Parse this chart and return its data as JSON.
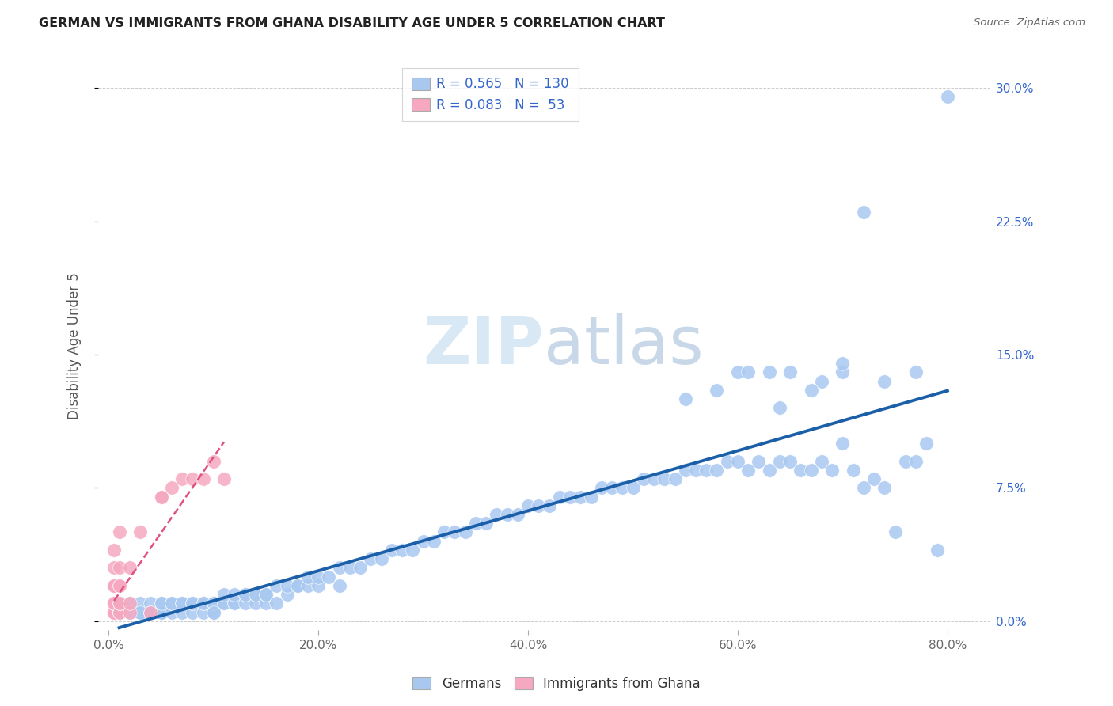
{
  "title": "GERMAN VS IMMIGRANTS FROM GHANA DISABILITY AGE UNDER 5 CORRELATION CHART",
  "source": "Source: ZipAtlas.com",
  "ylabel": "Disability Age Under 5",
  "xlabel_ticks": [
    "0.0%",
    "20.0%",
    "40.0%",
    "60.0%",
    "80.0%"
  ],
  "xlabel_vals": [
    0.0,
    0.2,
    0.4,
    0.6,
    0.8
  ],
  "ytick_labels": [
    "0.0%",
    "7.5%",
    "15.0%",
    "22.5%",
    "30.0%"
  ],
  "ytick_vals": [
    0.0,
    0.075,
    0.15,
    0.225,
    0.3
  ],
  "xlim": [
    -0.01,
    0.84
  ],
  "ylim": [
    -0.005,
    0.315
  ],
  "blue_R": 0.565,
  "blue_N": 130,
  "pink_R": 0.083,
  "pink_N": 53,
  "blue_color": "#a8c8f0",
  "pink_color": "#f5a8c0",
  "blue_line_color": "#1a5fa8",
  "pink_line_color": "#e05080",
  "legend_color": "#3366cc",
  "watermark_color": "#d8e8f5",
  "blue_x": [
    0.01,
    0.01,
    0.02,
    0.02,
    0.03,
    0.03,
    0.03,
    0.04,
    0.04,
    0.04,
    0.05,
    0.05,
    0.05,
    0.05,
    0.06,
    0.06,
    0.06,
    0.07,
    0.07,
    0.07,
    0.08,
    0.08,
    0.08,
    0.09,
    0.09,
    0.09,
    0.1,
    0.1,
    0.1,
    0.1,
    0.11,
    0.11,
    0.11,
    0.12,
    0.12,
    0.12,
    0.13,
    0.13,
    0.13,
    0.14,
    0.14,
    0.14,
    0.15,
    0.15,
    0.15,
    0.16,
    0.16,
    0.17,
    0.17,
    0.18,
    0.18,
    0.19,
    0.19,
    0.2,
    0.2,
    0.21,
    0.22,
    0.22,
    0.23,
    0.24,
    0.25,
    0.26,
    0.27,
    0.28,
    0.29,
    0.3,
    0.31,
    0.32,
    0.33,
    0.34,
    0.35,
    0.36,
    0.37,
    0.38,
    0.39,
    0.4,
    0.41,
    0.42,
    0.43,
    0.44,
    0.45,
    0.46,
    0.47,
    0.48,
    0.49,
    0.5,
    0.51,
    0.52,
    0.53,
    0.54,
    0.55,
    0.56,
    0.57,
    0.58,
    0.59,
    0.6,
    0.61,
    0.62,
    0.63,
    0.64,
    0.65,
    0.66,
    0.67,
    0.68,
    0.69,
    0.7,
    0.71,
    0.72,
    0.73,
    0.74,
    0.75,
    0.76,
    0.77,
    0.78,
    0.79,
    0.8,
    0.6,
    0.63,
    0.65,
    0.68,
    0.7,
    0.72,
    0.55,
    0.58,
    0.61,
    0.64,
    0.67,
    0.7,
    0.74,
    0.77
  ],
  "blue_y": [
    0.005,
    0.01,
    0.005,
    0.01,
    0.005,
    0.01,
    0.005,
    0.005,
    0.01,
    0.005,
    0.005,
    0.01,
    0.005,
    0.01,
    0.005,
    0.01,
    0.01,
    0.005,
    0.01,
    0.01,
    0.005,
    0.01,
    0.01,
    0.005,
    0.01,
    0.01,
    0.005,
    0.01,
    0.01,
    0.005,
    0.01,
    0.01,
    0.015,
    0.01,
    0.01,
    0.015,
    0.01,
    0.015,
    0.015,
    0.01,
    0.015,
    0.015,
    0.01,
    0.015,
    0.015,
    0.01,
    0.02,
    0.015,
    0.02,
    0.02,
    0.02,
    0.02,
    0.025,
    0.02,
    0.025,
    0.025,
    0.02,
    0.03,
    0.03,
    0.03,
    0.035,
    0.035,
    0.04,
    0.04,
    0.04,
    0.045,
    0.045,
    0.05,
    0.05,
    0.05,
    0.055,
    0.055,
    0.06,
    0.06,
    0.06,
    0.065,
    0.065,
    0.065,
    0.07,
    0.07,
    0.07,
    0.07,
    0.075,
    0.075,
    0.075,
    0.075,
    0.08,
    0.08,
    0.08,
    0.08,
    0.085,
    0.085,
    0.085,
    0.085,
    0.09,
    0.09,
    0.085,
    0.09,
    0.085,
    0.09,
    0.09,
    0.085,
    0.085,
    0.09,
    0.085,
    0.1,
    0.085,
    0.075,
    0.08,
    0.075,
    0.05,
    0.09,
    0.09,
    0.1,
    0.04,
    0.295,
    0.14,
    0.14,
    0.14,
    0.135,
    0.14,
    0.23,
    0.125,
    0.13,
    0.14,
    0.12,
    0.13,
    0.145,
    0.135,
    0.14
  ],
  "pink_x": [
    0.005,
    0.005,
    0.005,
    0.005,
    0.005,
    0.005,
    0.005,
    0.005,
    0.005,
    0.005,
    0.005,
    0.005,
    0.005,
    0.005,
    0.005,
    0.005,
    0.005,
    0.005,
    0.005,
    0.005,
    0.005,
    0.005,
    0.005,
    0.005,
    0.005,
    0.005,
    0.005,
    0.005,
    0.005,
    0.005,
    0.01,
    0.01,
    0.01,
    0.01,
    0.01,
    0.01,
    0.01,
    0.01,
    0.01,
    0.01,
    0.02,
    0.02,
    0.02,
    0.03,
    0.04,
    0.05,
    0.05,
    0.06,
    0.07,
    0.08,
    0.09,
    0.1,
    0.11
  ],
  "pink_y": [
    0.005,
    0.005,
    0.005,
    0.005,
    0.005,
    0.005,
    0.005,
    0.005,
    0.005,
    0.005,
    0.005,
    0.005,
    0.005,
    0.01,
    0.01,
    0.01,
    0.01,
    0.01,
    0.01,
    0.01,
    0.01,
    0.01,
    0.01,
    0.02,
    0.02,
    0.02,
    0.02,
    0.02,
    0.03,
    0.04,
    0.005,
    0.005,
    0.005,
    0.01,
    0.01,
    0.01,
    0.02,
    0.02,
    0.03,
    0.05,
    0.005,
    0.01,
    0.03,
    0.05,
    0.005,
    0.07,
    0.07,
    0.075,
    0.08,
    0.08,
    0.08,
    0.09,
    0.08
  ]
}
